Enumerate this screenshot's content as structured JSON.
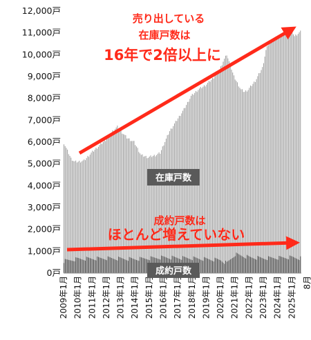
{
  "chart_data": {
    "type": "bar",
    "frequency": "monthly",
    "y_unit_suffix": "戸",
    "ylim": [
      0,
      12000
    ],
    "yticks": [
      0,
      1000,
      2000,
      3000,
      4000,
      5000,
      6000,
      7000,
      8000,
      9000,
      10000,
      11000,
      12000
    ],
    "ytick_labels": [
      "0戸",
      "1,000戸",
      "2,000戸",
      "3,000戸",
      "4,000戸",
      "5,000戸",
      "6,000戸",
      "7,000戸",
      "8,000戸",
      "9,000戸",
      "10,000戸",
      "11,000戸",
      "12,000戸"
    ],
    "x_start": "2009-01",
    "x_end": "2025-08",
    "xtick_labels": [
      "2009年1月",
      "2010年1月",
      "2011年1月",
      "2012年1月",
      "2013年1月",
      "2014年1月",
      "2015年1月",
      "2016年1月",
      "2017年1月",
      "2018年1月",
      "2019年1月",
      "2020年1月",
      "2021年1月",
      "2022年1月",
      "2023年1月",
      "2024年1月",
      "2025年1月",
      "8月"
    ],
    "series": [
      {
        "name": "在庫戸数",
        "color": "#9a9a9a",
        "anchors": [
          [
            "2009-01",
            5950
          ],
          [
            "2009-04",
            5600
          ],
          [
            "2009-07",
            5250
          ],
          [
            "2009-10",
            5100
          ],
          [
            "2010-01",
            5100
          ],
          [
            "2010-06",
            5150
          ],
          [
            "2010-12",
            5500
          ],
          [
            "2011-06",
            5800
          ],
          [
            "2011-12",
            6100
          ],
          [
            "2012-06",
            6500
          ],
          [
            "2012-10",
            6700
          ],
          [
            "2013-01",
            6500
          ],
          [
            "2013-06",
            6200
          ],
          [
            "2013-12",
            6000
          ],
          [
            "2014-06",
            5400
          ],
          [
            "2014-12",
            5300
          ],
          [
            "2015-06",
            5400
          ],
          [
            "2015-10",
            5500
          ],
          [
            "2016-01",
            5900
          ],
          [
            "2016-06",
            6500
          ],
          [
            "2016-12",
            7000
          ],
          [
            "2017-06",
            7500
          ],
          [
            "2017-12",
            8100
          ],
          [
            "2018-06",
            8400
          ],
          [
            "2018-12",
            8600
          ],
          [
            "2019-06",
            8900
          ],
          [
            "2019-12",
            9300
          ],
          [
            "2020-03",
            9700
          ],
          [
            "2020-06",
            10000
          ],
          [
            "2020-09",
            9500
          ],
          [
            "2020-12",
            9000
          ],
          [
            "2021-03",
            8700
          ],
          [
            "2021-06",
            8400
          ],
          [
            "2021-09",
            8300
          ],
          [
            "2021-12",
            8400
          ],
          [
            "2022-06",
            8800
          ],
          [
            "2022-12",
            9400
          ],
          [
            "2023-03",
            10200
          ],
          [
            "2023-06",
            10600
          ],
          [
            "2023-12",
            10800
          ],
          [
            "2024-06",
            11000
          ],
          [
            "2024-12",
            11200
          ],
          [
            "2025-03",
            10850
          ],
          [
            "2025-08",
            11050
          ]
        ]
      },
      {
        "name": "成約戸数",
        "color": "#222222",
        "anchors": [
          [
            "2009-01",
            550
          ],
          [
            "2010-01",
            650
          ],
          [
            "2012-01",
            680
          ],
          [
            "2014-01",
            640
          ],
          [
            "2016-01",
            720
          ],
          [
            "2018-01",
            680
          ],
          [
            "2020-01",
            600
          ],
          [
            "2020-06",
            450
          ],
          [
            "2021-01",
            860
          ],
          [
            "2022-01",
            720
          ],
          [
            "2023-01",
            680
          ],
          [
            "2024-01",
            700
          ],
          [
            "2025-01",
            720
          ],
          [
            "2025-08",
            680
          ]
        ]
      }
    ],
    "annotations": {
      "top": [
        "売り出している",
        "在庫戸数は",
        "16年で2倍以上に"
      ],
      "mid": [
        "成約戸数は",
        "ほとんど増えていない"
      ],
      "inventory_box": "在庫戸数",
      "contracts_box": "成約戸数"
    },
    "colors": {
      "accent": "#ff2a1a",
      "box": "#5a5a5a"
    },
    "grid": false,
    "legend": "none"
  }
}
